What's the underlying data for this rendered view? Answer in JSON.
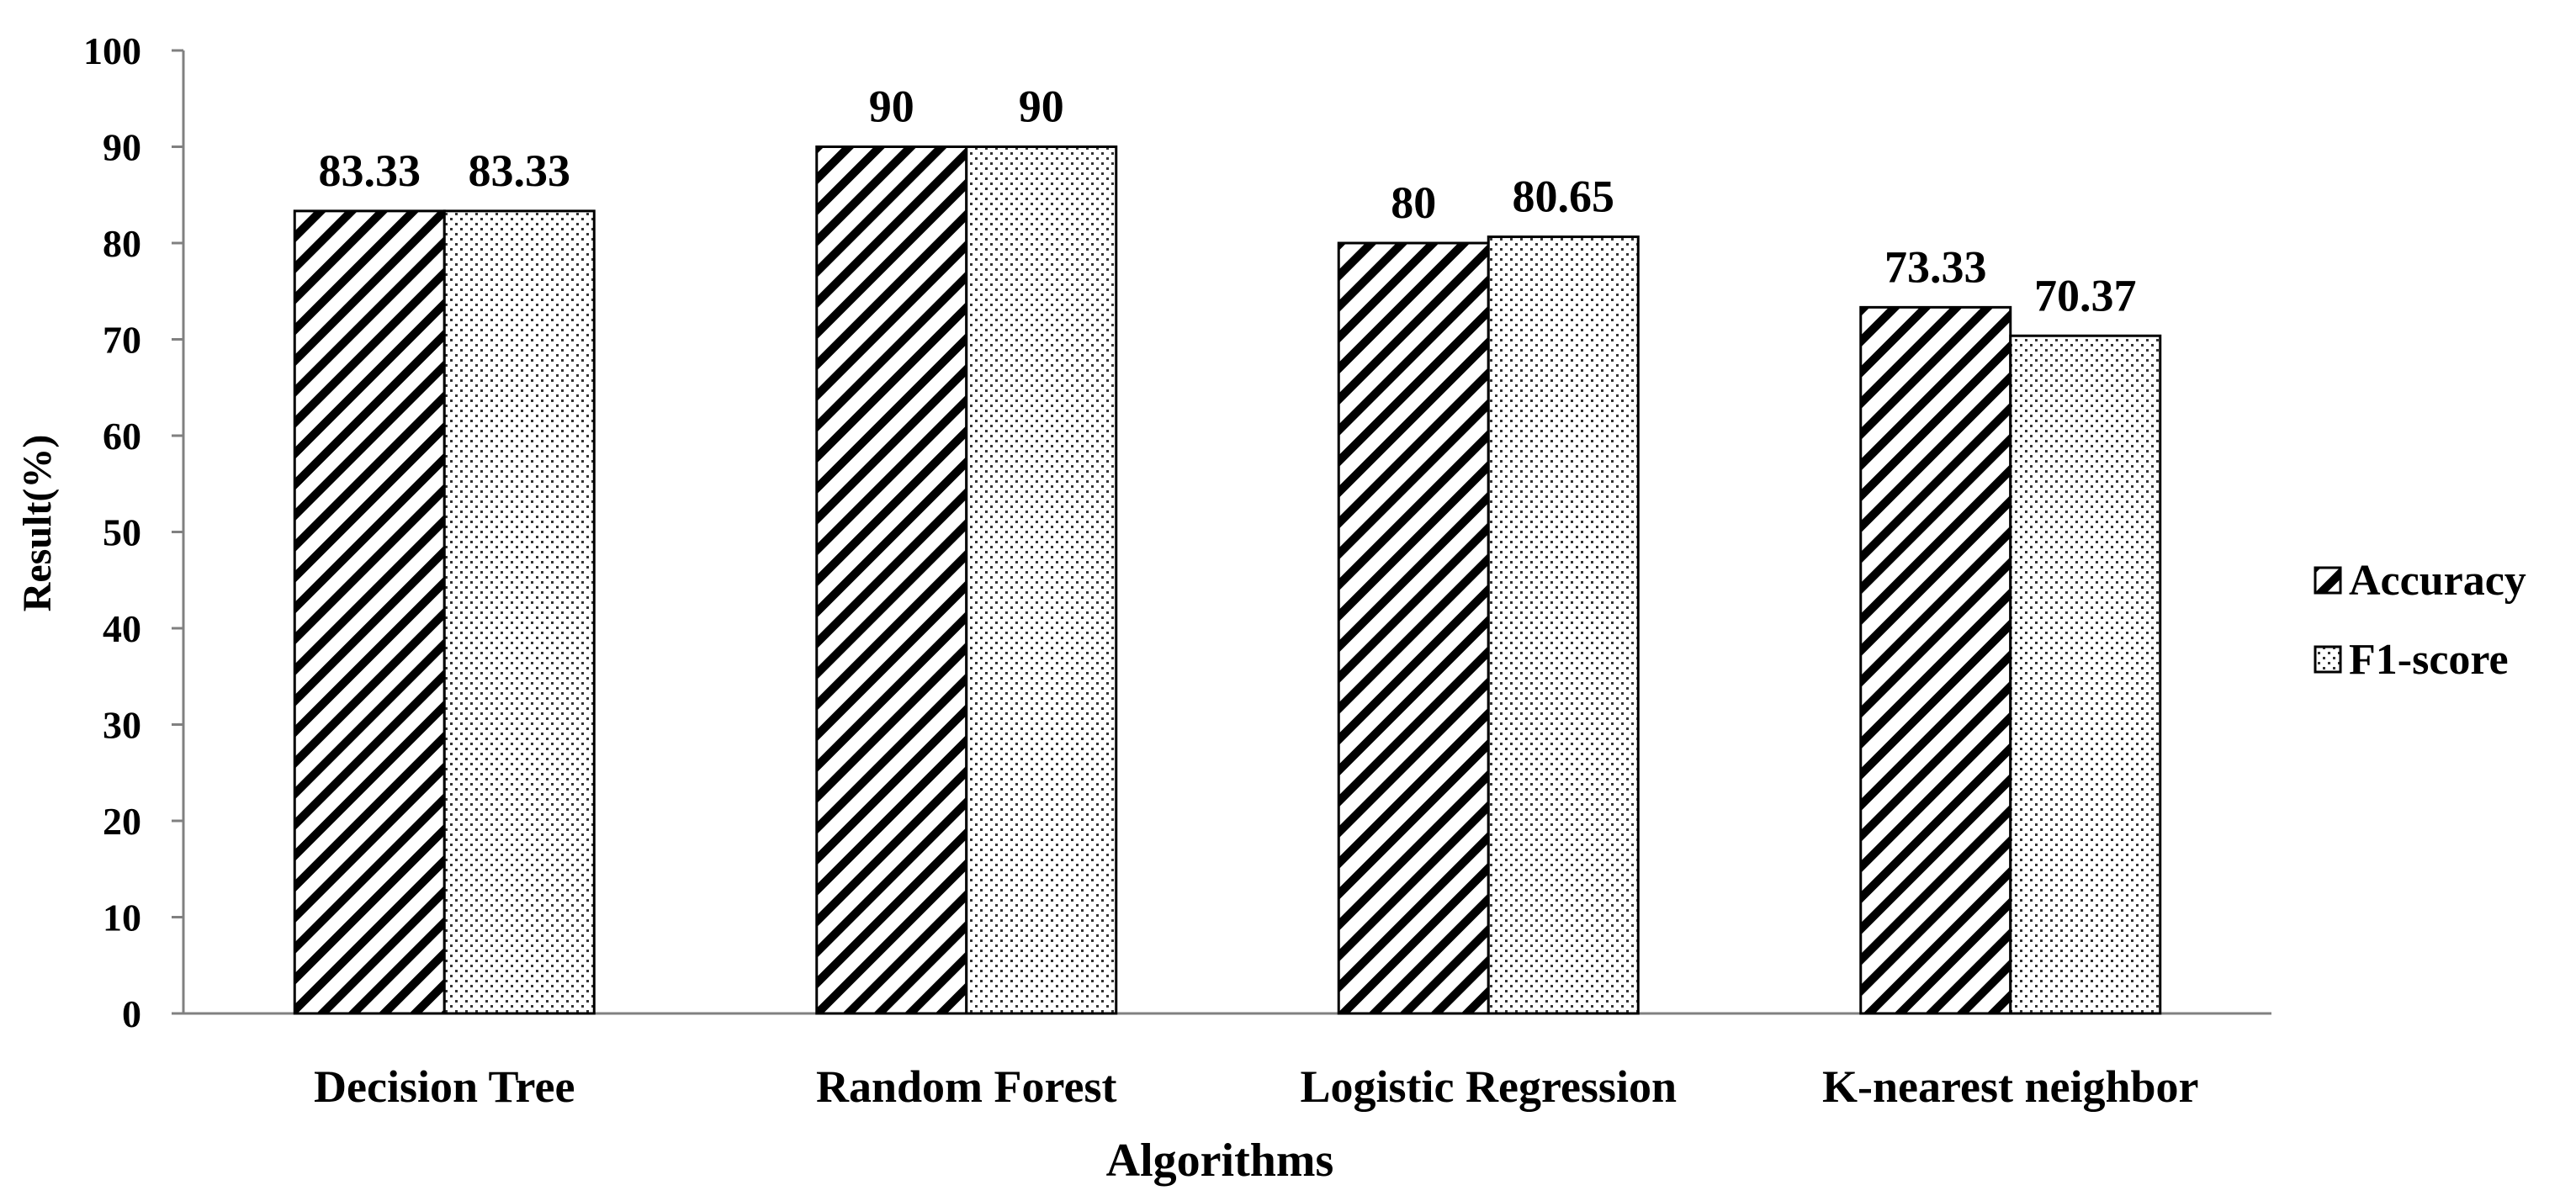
{
  "chart_data": {
    "type": "bar",
    "title": "",
    "xlabel": "Algorithms",
    "ylabel": "Result(%)",
    "categories": [
      "Decision Tree",
      "Random Forest",
      "Logistic Regression",
      "K-nearest neighbor"
    ],
    "series": [
      {
        "name": "Accuracy",
        "values": [
          83.33,
          90,
          80,
          73.33
        ],
        "labels": [
          "83.33",
          "90",
          "80",
          "73.33"
        ],
        "pattern": "diagonal-hatch"
      },
      {
        "name": "F1-score",
        "values": [
          83.33,
          90,
          80.65,
          70.37
        ],
        "labels": [
          "83.33",
          "90",
          "80.65",
          "70.37"
        ],
        "pattern": "dots"
      }
    ],
    "ylim": [
      0,
      100
    ],
    "yticks": [
      "0",
      "10",
      "20",
      "30",
      "40",
      "50",
      "60",
      "70",
      "80",
      "90",
      "100"
    ],
    "grid": false,
    "legend_position": "right",
    "colors": {
      "bar_stroke": "#000000",
      "bar_fill": "#ffffff",
      "text": "#000000"
    }
  }
}
